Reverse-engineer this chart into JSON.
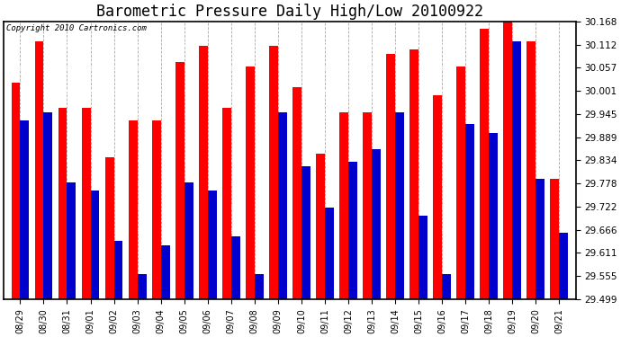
{
  "title": "Barometric Pressure Daily High/Low 20100922",
  "copyright": "Copyright 2010 Cartronics.com",
  "categories": [
    "08/29",
    "08/30",
    "08/31",
    "09/01",
    "09/02",
    "09/03",
    "09/04",
    "09/05",
    "09/06",
    "09/07",
    "09/08",
    "09/09",
    "09/10",
    "09/11",
    "09/12",
    "09/13",
    "09/14",
    "09/15",
    "09/16",
    "09/17",
    "09/18",
    "09/19",
    "09/20",
    "09/21"
  ],
  "high": [
    30.02,
    30.12,
    29.96,
    29.96,
    29.84,
    29.93,
    29.93,
    30.07,
    30.11,
    29.96,
    30.06,
    30.11,
    30.01,
    29.85,
    29.95,
    29.95,
    30.09,
    30.1,
    29.99,
    30.06,
    30.15,
    30.17,
    30.12,
    29.79
  ],
  "low": [
    29.93,
    29.95,
    29.78,
    29.76,
    29.64,
    29.56,
    29.63,
    29.78,
    29.76,
    29.65,
    29.56,
    29.95,
    29.82,
    29.72,
    29.83,
    29.86,
    29.95,
    29.7,
    29.56,
    29.92,
    29.9,
    30.12,
    29.79,
    29.66
  ],
  "ylim_min": 29.499,
  "ylim_max": 30.168,
  "yticks": [
    29.499,
    29.555,
    29.611,
    29.666,
    29.722,
    29.778,
    29.834,
    29.889,
    29.945,
    30.001,
    30.057,
    30.112,
    30.168
  ],
  "high_color": "#ff0000",
  "low_color": "#0000cc",
  "bg_color": "#ffffff",
  "grid_color": "#aaaaaa",
  "title_fontsize": 12,
  "copyright_fontsize": 6.5,
  "bar_width": 0.38
}
